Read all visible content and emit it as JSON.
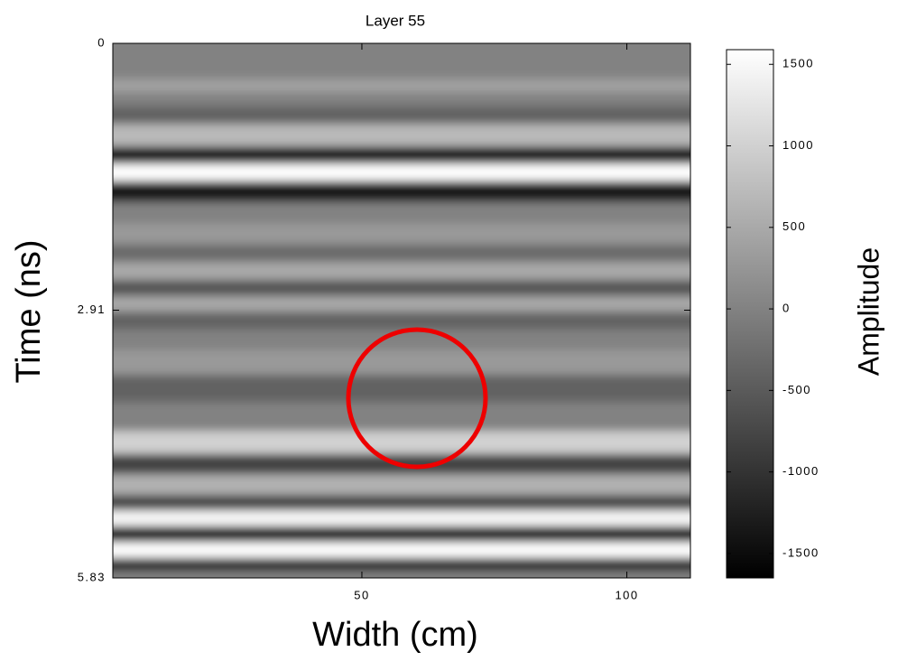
{
  "chart_data": {
    "type": "heatmap",
    "title": "Layer 55",
    "x_label": "Width (cm)",
    "y_label": "Time (ns)",
    "colorbar_label": "Amplitude",
    "xlim": [
      3,
      112
    ],
    "xticks": [
      50,
      100
    ],
    "ylim": [
      0,
      5.83
    ],
    "yticks": [
      0,
      2.91,
      5.83
    ],
    "y_inverted": true,
    "y": [
      0,
      0.32,
      0.46,
      0.61,
      0.76,
      1.0,
      1.25,
      1.38,
      1.62,
      1.84,
      2.09,
      2.29,
      2.48,
      2.68,
      2.83,
      3.02,
      3.22,
      3.47,
      3.76,
      4.06,
      4.4,
      4.55,
      4.85,
      5.0,
      5.19,
      5.34,
      5.54,
      5.68,
      5.83
    ],
    "values": [
      0,
      0,
      400,
      0,
      -400,
      700,
      -1500,
      1600,
      -1400,
      0,
      300,
      -300,
      500,
      -600,
      500,
      -400,
      0,
      300,
      -400,
      0,
      1000,
      -800,
      600,
      -800,
      1500,
      -1600,
      1600,
      -1200,
      0
    ],
    "clim": [
      -1650,
      1590
    ],
    "cticks": [
      1500,
      1000,
      500,
      0,
      -500,
      -1000,
      -1500
    ]
  }
}
